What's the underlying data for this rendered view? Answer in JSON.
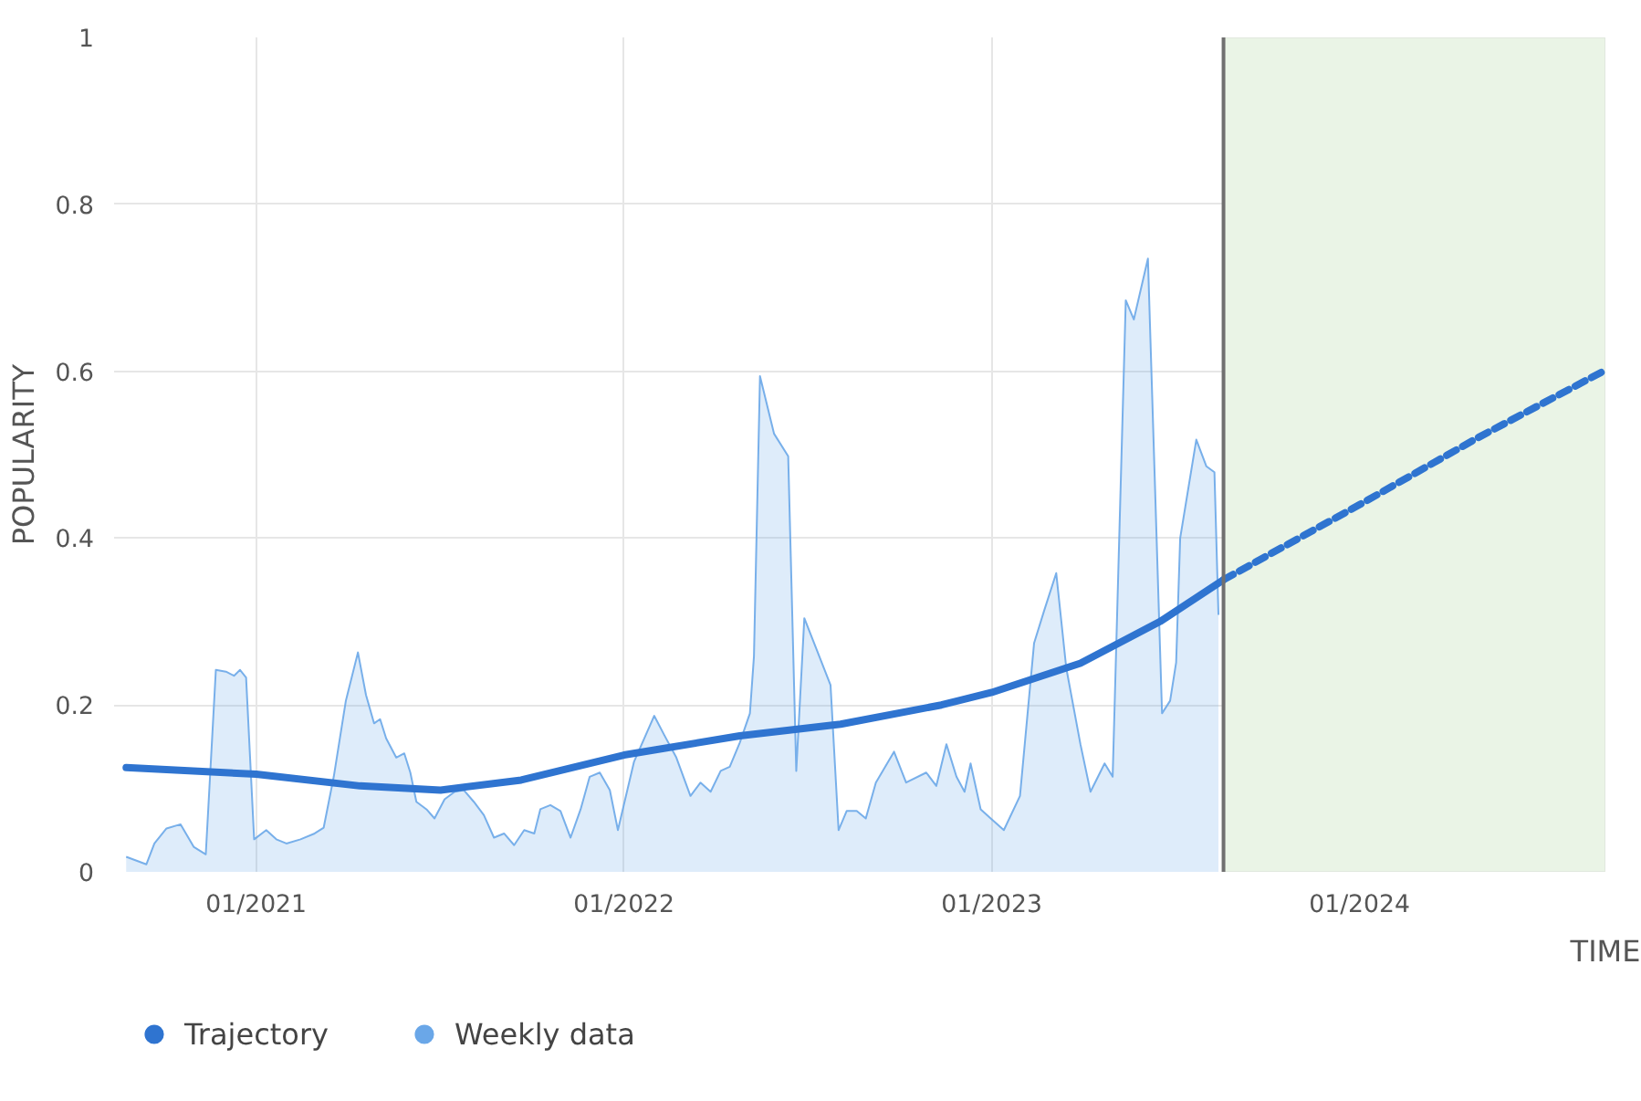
{
  "chart_data": {
    "type": "line",
    "xlabel": "TIME",
    "ylabel": "POPULARITY",
    "xlim": [
      "2020-08-13",
      "2024-09-01"
    ],
    "ylim": [
      0,
      1
    ],
    "xticks": [
      {
        "value": "2021-01-01",
        "label": "01/2021"
      },
      {
        "value": "2022-01-01",
        "label": "01/2022"
      },
      {
        "value": "2023-01-01",
        "label": "01/2023"
      },
      {
        "value": "2024-01-01",
        "label": "01/2024"
      }
    ],
    "yticks": [
      0,
      0.2,
      0.4,
      0.6,
      0.8,
      1
    ],
    "grid": true,
    "legend": "bottom left",
    "ref_lines": [
      {
        "axis": "x",
        "value": "2023-08-19",
        "color": "#707070"
      }
    ],
    "bands": [
      {
        "axis": "x",
        "from": "2023-08-19",
        "to": "2024-09-01",
        "color": "#eaf4e6"
      }
    ],
    "series": [
      {
        "name": "Weekly data",
        "type": "area",
        "color": "#6aa7e8",
        "x": [
          "2020-08-25",
          "2020-09-14",
          "2020-09-22",
          "2020-10-04",
          "2020-10-18",
          "2020-10-31",
          "2020-11-12",
          "2020-11-22",
          "2020-12-02",
          "2020-12-10",
          "2020-12-16",
          "2020-12-22",
          "2020-12-30",
          "2021-01-11",
          "2021-01-21",
          "2021-01-31",
          "2021-02-14",
          "2021-02-28",
          "2021-03-09",
          "2021-03-19",
          "2021-03-31",
          "2021-04-12",
          "2021-04-20",
          "2021-04-28",
          "2021-05-04",
          "2021-05-10",
          "2021-05-20",
          "2021-05-28",
          "2021-06-03",
          "2021-06-09",
          "2021-06-19",
          "2021-06-27",
          "2021-07-07",
          "2021-07-17",
          "2021-07-26",
          "2021-08-05",
          "2021-08-15",
          "2021-08-25",
          "2021-09-04",
          "2021-09-14",
          "2021-09-24",
          "2021-10-04",
          "2021-10-10",
          "2021-10-20",
          "2021-10-30",
          "2021-11-09",
          "2021-11-19",
          "2021-11-28",
          "2021-12-08",
          "2021-12-18",
          "2021-12-26",
          "2022-01-11",
          "2022-01-31",
          "2022-02-10",
          "2022-02-22",
          "2022-03-08",
          "2022-03-18",
          "2022-03-28",
          "2022-04-07",
          "2022-04-16",
          "2022-04-26",
          "2022-05-06",
          "2022-05-10",
          "2022-05-16",
          "2022-05-30",
          "2022-06-13",
          "2022-06-21",
          "2022-06-29",
          "2022-07-11",
          "2022-07-25",
          "2022-08-02",
          "2022-08-10",
          "2022-08-20",
          "2022-08-29",
          "2022-09-08",
          "2022-09-26",
          "2022-10-08",
          "2022-10-28",
          "2022-11-07",
          "2022-11-17",
          "2022-11-27",
          "2022-12-05",
          "2022-12-11",
          "2022-12-21",
          "2022-12-31",
          "2023-01-13",
          "2023-01-29",
          "2023-02-12",
          "2023-02-22",
          "2023-03-06",
          "2023-03-16",
          "2023-03-30",
          "2023-04-09",
          "2023-04-23",
          "2023-05-01",
          "2023-05-14",
          "2023-05-22",
          "2023-06-05",
          "2023-06-19",
          "2023-06-27",
          "2023-07-03",
          "2023-07-07",
          "2023-07-23",
          "2023-08-02",
          "2023-08-10",
          "2023-08-14"
        ],
        "values": [
          0.018,
          0.009,
          0.034,
          0.052,
          0.057,
          0.03,
          0.021,
          0.242,
          0.24,
          0.235,
          0.242,
          0.233,
          0.039,
          0.05,
          0.039,
          0.034,
          0.039,
          0.046,
          0.053,
          0.114,
          0.205,
          0.263,
          0.212,
          0.178,
          0.183,
          0.16,
          0.137,
          0.142,
          0.119,
          0.084,
          0.075,
          0.064,
          0.087,
          0.096,
          0.098,
          0.084,
          0.068,
          0.041,
          0.046,
          0.032,
          0.05,
          0.046,
          0.075,
          0.08,
          0.073,
          0.041,
          0.075,
          0.114,
          0.119,
          0.098,
          0.05,
          0.132,
          0.187,
          0.164,
          0.137,
          0.091,
          0.107,
          0.096,
          0.121,
          0.126,
          0.155,
          0.19,
          0.258,
          0.594,
          0.525,
          0.498,
          0.121,
          0.304,
          0.267,
          0.224,
          0.05,
          0.073,
          0.073,
          0.064,
          0.107,
          0.144,
          0.107,
          0.119,
          0.103,
          0.153,
          0.114,
          0.096,
          0.13,
          0.075,
          0.064,
          0.05,
          0.091,
          0.274,
          0.313,
          0.358,
          0.244,
          0.153,
          0.096,
          0.13,
          0.114,
          0.685,
          0.662,
          0.735,
          0.19,
          0.205,
          0.251,
          0.4,
          0.518,
          0.486,
          0.479,
          0.308
        ]
      },
      {
        "name": "Trajectory",
        "color": "#2f74d0",
        "line_style": "solid",
        "x": [
          "2020-08-25",
          "2021-01-01",
          "2021-04-14",
          "2021-07-03",
          "2021-09-21",
          "2022-01-01",
          "2022-04-26",
          "2022-08-04",
          "2022-11-12",
          "2023-01-01",
          "2023-03-30",
          "2023-06-17",
          "2023-08-19"
        ],
        "values": [
          0.125,
          0.117,
          0.103,
          0.098,
          0.11,
          0.14,
          0.163,
          0.177,
          0.2,
          0.215,
          0.25,
          0.3,
          0.35
        ]
      },
      {
        "color": "#2f74d0",
        "line_style": "dashed",
        "x": [
          "2023-08-19",
          "2024-01-01",
          "2024-04-27",
          "2024-08-30"
        ],
        "values": [
          0.35,
          0.44,
          0.52,
          0.6
        ]
      }
    ]
  }
}
